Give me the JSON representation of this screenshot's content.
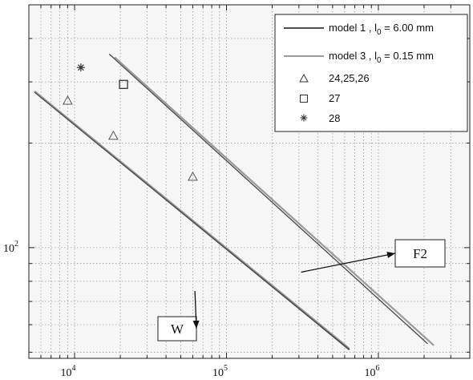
{
  "chart_data": {
    "type": "scatter",
    "title": "",
    "xlabel": "",
    "ylabel": "",
    "x_scale": "log",
    "y_scale": "log",
    "xlim": [
      5000,
      4000000
    ],
    "ylim": [
      48,
      500
    ],
    "grid": true,
    "legend_position": "top-right",
    "x_ticks": [
      {
        "value": 10000,
        "base": "10",
        "exp": "4"
      },
      {
        "value": 100000,
        "base": "10",
        "exp": "5"
      },
      {
        "value": 1000000,
        "base": "10",
        "exp": "6"
      }
    ],
    "y_ticks": [
      {
        "value": 100,
        "base": "10",
        "exp": "2"
      }
    ],
    "legend": {
      "model1": {
        "prefix": "model 1 , l",
        "sub": "0",
        "suffix": " = 6.00 mm"
      },
      "model3": {
        "prefix": "model 3 , l",
        "sub": "0",
        "suffix": " = 0.15 mm"
      },
      "s1": "24,25,26",
      "s2": "27",
      "s3": "28"
    },
    "lines": [
      {
        "group": "W",
        "legend": "model1",
        "color": "#505050",
        "width": 2.2,
        "points": [
          [
            5500,
            280
          ],
          [
            640000,
            51
          ]
        ]
      },
      {
        "group": "W",
        "legend": "model3",
        "color": "#9a9a9a",
        "width": 1.4,
        "points": [
          [
            5500,
            282
          ],
          [
            640000,
            51.5
          ]
        ]
      },
      {
        "group": "F2",
        "legend": "model1",
        "color": "#505050",
        "width": 1.4,
        "points": [
          [
            17000,
            360
          ],
          [
            2100000,
            53
          ]
        ]
      },
      {
        "group": "F2",
        "legend": "model3",
        "color": "#9a9a9a",
        "width": 2.2,
        "points": [
          [
            18500,
            352
          ],
          [
            2300000,
            52.5
          ]
        ]
      }
    ],
    "series": [
      {
        "legend": "s1",
        "marker": "triangle",
        "x": [
          9000,
          18000,
          60000
        ],
        "y": [
          265,
          210,
          160
        ]
      },
      {
        "legend": "s2",
        "marker": "square",
        "x": [
          21000
        ],
        "y": [
          295
        ]
      },
      {
        "legend": "s3",
        "marker": "star",
        "x": [
          11000
        ],
        "y": [
          330
        ]
      }
    ],
    "annotations": [
      {
        "text": "W",
        "arrow_to": [
          62000,
          75
        ]
      },
      {
        "text": "F2",
        "arrow_to": [
          310000,
          85
        ]
      }
    ]
  }
}
